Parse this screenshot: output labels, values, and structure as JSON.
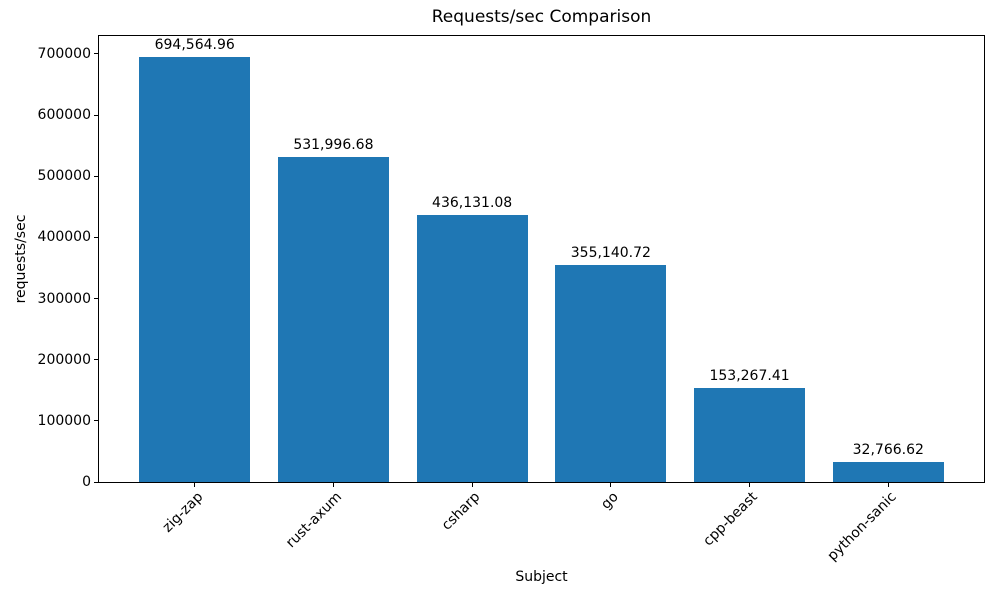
{
  "chart_data": {
    "type": "bar",
    "title": "Requests/sec Comparison",
    "xlabel": "Subject",
    "ylabel": "requests/sec",
    "categories": [
      "zig-zap",
      "rust-axum",
      "csharp",
      "go",
      "cpp-beast",
      "python-sanic"
    ],
    "values": [
      694564.96,
      531996.68,
      436131.08,
      355140.72,
      153267.41,
      32766.62
    ],
    "value_labels": [
      "694,564.96",
      "531,996.68",
      "436,131.08",
      "355,140.72",
      "153,267.41",
      "32,766.62"
    ],
    "y_ticks": [
      0,
      100000,
      200000,
      300000,
      400000,
      500000,
      600000,
      700000
    ],
    "y_tick_labels": [
      "0",
      "100000",
      "200000",
      "300000",
      "400000",
      "500000",
      "600000",
      "700000"
    ],
    "ylim": [
      0,
      729293
    ],
    "bar_color": "#1f77b4",
    "bar_width_fraction": 0.8,
    "x_units_span": 6.38,
    "x_units_offset": 0.69,
    "x_tick_rotation_deg": 45,
    "grid": false,
    "legend_position": "none"
  }
}
